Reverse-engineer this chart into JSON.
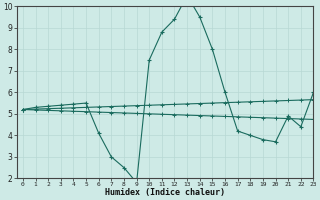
{
  "x": [
    0,
    1,
    2,
    3,
    4,
    5,
    6,
    7,
    8,
    9,
    10,
    11,
    12,
    13,
    14,
    15,
    16,
    17,
    18,
    19,
    20,
    21,
    22,
    23
  ],
  "y_main": [
    5.2,
    5.3,
    5.35,
    5.4,
    5.45,
    5.5,
    4.1,
    3.0,
    2.5,
    1.8,
    7.5,
    8.8,
    9.4,
    10.5,
    9.5,
    8.0,
    6.0,
    4.2,
    4.0,
    3.8,
    3.7,
    4.9,
    4.4,
    6.0
  ],
  "y_trend1": [
    5.2,
    5.18,
    5.16,
    5.14,
    5.12,
    5.1,
    5.08,
    5.06,
    5.04,
    5.02,
    5.0,
    4.98,
    4.96,
    4.94,
    4.92,
    4.9,
    4.88,
    4.86,
    4.84,
    4.82,
    4.8,
    4.78,
    4.76,
    4.74
  ],
  "y_trend2": [
    5.2,
    5.22,
    5.24,
    5.26,
    5.28,
    5.3,
    5.32,
    5.34,
    5.36,
    5.38,
    5.4,
    5.42,
    5.44,
    5.46,
    5.48,
    5.5,
    5.52,
    5.54,
    5.56,
    5.58,
    5.6,
    5.62,
    5.64,
    5.66
  ],
  "line_color": "#1a6b5e",
  "bg_color": "#ceeae6",
  "grid_color": "#b8d8d4",
  "xlabel": "Humidex (Indice chaleur)",
  "ylim": [
    2,
    10
  ],
  "xlim": [
    -0.5,
    23
  ],
  "yticks": [
    2,
    3,
    4,
    5,
    6,
    7,
    8,
    9,
    10
  ],
  "xticks": [
    0,
    1,
    2,
    3,
    4,
    5,
    6,
    7,
    8,
    9,
    10,
    11,
    12,
    13,
    14,
    15,
    16,
    17,
    18,
    19,
    20,
    21,
    22,
    23
  ]
}
